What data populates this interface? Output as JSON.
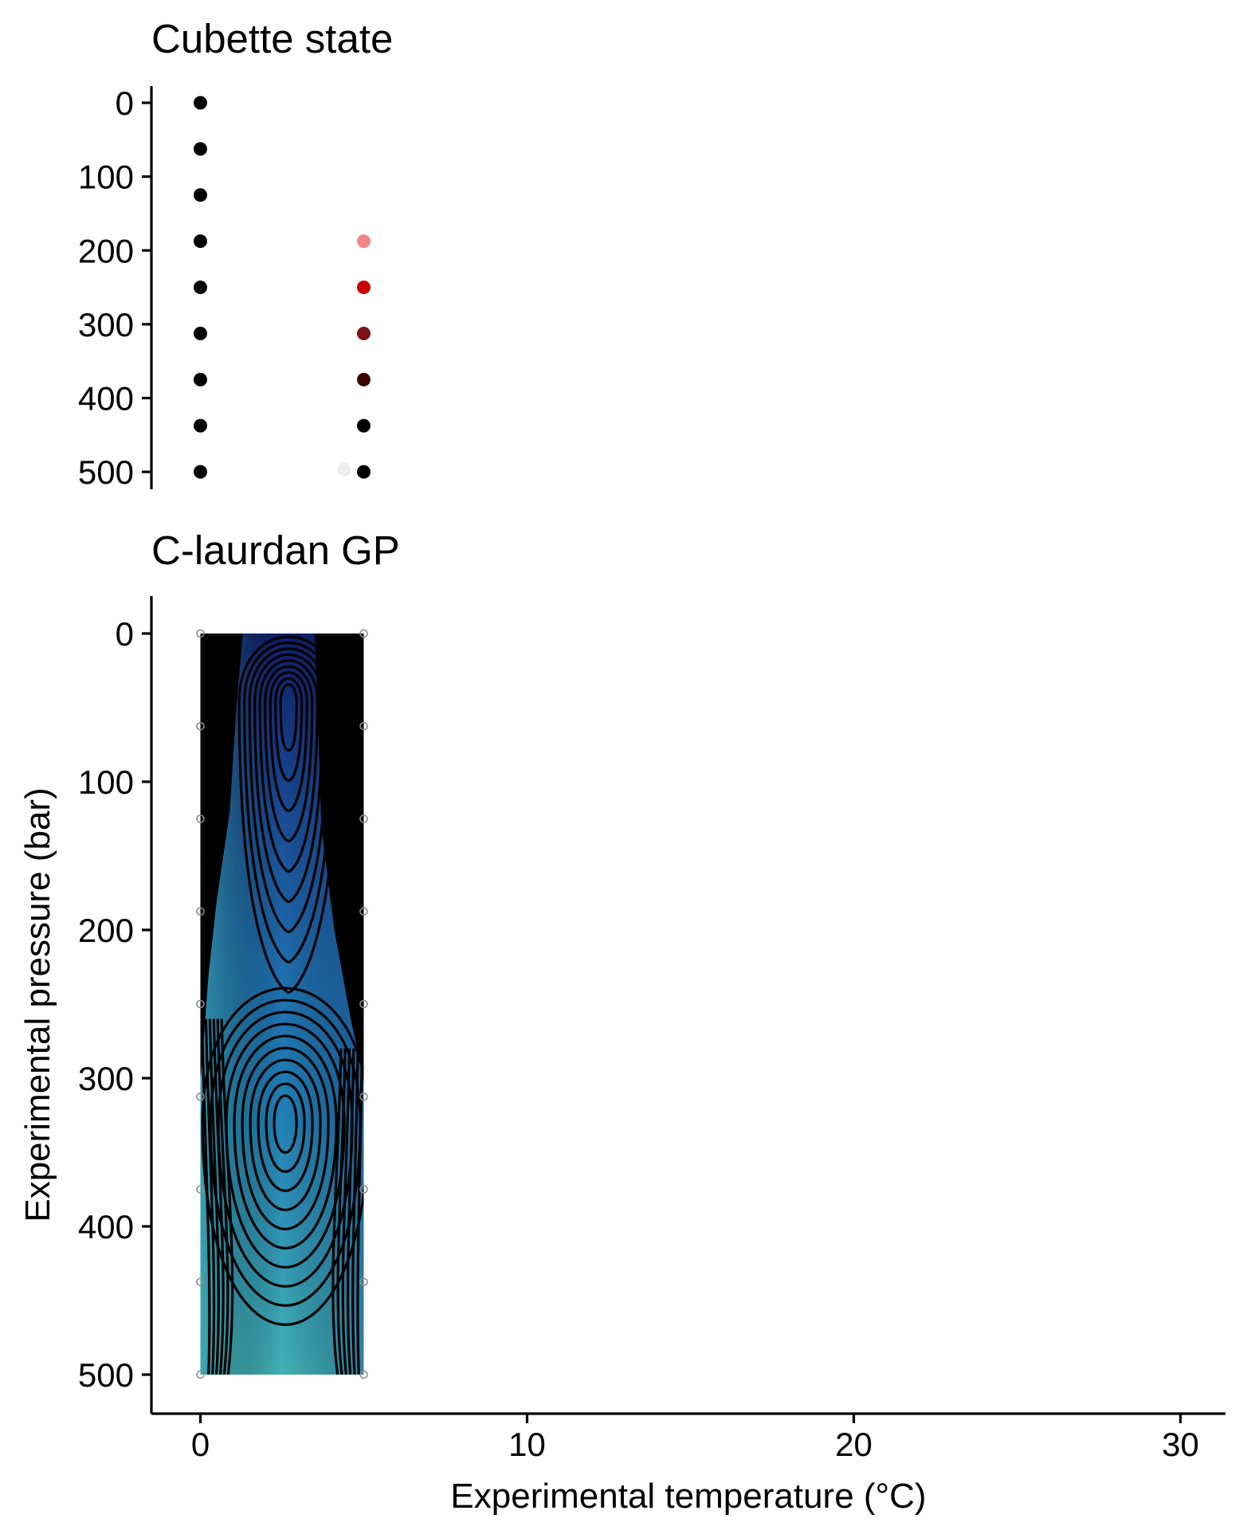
{
  "chart_data": [
    {
      "type": "scatter",
      "title": "Cubette state",
      "xlabel": "",
      "ylabel": "",
      "x_axis_shown": false,
      "xlim": [
        -1.5,
        31.5
      ],
      "ylim": [
        -20,
        520
      ],
      "y_reversed": true,
      "y_ticks": [
        0,
        100,
        200,
        300,
        400,
        500
      ],
      "y_tick_labels": [
        "0",
        "100",
        "200",
        "300",
        "400",
        "500"
      ],
      "grid": false,
      "legend": "none",
      "points": [
        {
          "x": 0,
          "y": 0,
          "color": "#000000"
        },
        {
          "x": 0,
          "y": 62.5,
          "color": "#000000"
        },
        {
          "x": 0,
          "y": 125,
          "color": "#000000"
        },
        {
          "x": 0,
          "y": 187.5,
          "color": "#000000"
        },
        {
          "x": 0,
          "y": 250,
          "color": "#000000"
        },
        {
          "x": 0,
          "y": 312.5,
          "color": "#000000"
        },
        {
          "x": 0,
          "y": 375,
          "color": "#000000"
        },
        {
          "x": 0,
          "y": 437.5,
          "color": "#000000"
        },
        {
          "x": 0,
          "y": 500,
          "color": "#000000"
        },
        {
          "x": 5,
          "y": 187.5,
          "color": "#f07070"
        },
        {
          "x": 5,
          "y": 250,
          "color": "#cc0000"
        },
        {
          "x": 5,
          "y": 312.5,
          "color": "#7a1515"
        },
        {
          "x": 5,
          "y": 375,
          "color": "#3c0505"
        },
        {
          "x": 5,
          "y": 437.5,
          "color": "#000000"
        },
        {
          "x": 5,
          "y": 500,
          "color": "#000000"
        },
        {
          "x": 4.4,
          "y": 497,
          "color": "#eeeeee"
        }
      ]
    },
    {
      "type": "heatmap",
      "subtype": "filled contour",
      "title": "C-laurdan GP",
      "xlabel": "Experimental temperature (°C)",
      "ylabel": "Experimental pressure (bar)",
      "xlim": [
        -1.5,
        31.5
      ],
      "ylim": [
        -25,
        525
      ],
      "y_reversed": true,
      "x_ticks": [
        0,
        10,
        20,
        30
      ],
      "x_tick_labels": [
        "0",
        "10",
        "20",
        "30"
      ],
      "y_ticks": [
        0,
        100,
        200,
        300,
        400,
        500
      ],
      "y_tick_labels": [
        "0",
        "100",
        "200",
        "300",
        "400",
        "500"
      ],
      "grid": false,
      "legend": "none",
      "colors": {
        "dark": "#0f1f6a",
        "mid": "#1f77b4",
        "light": "#45b3b8"
      },
      "data_x_range": [
        0,
        5
      ],
      "data_y_range": [
        0,
        500
      ],
      "minimum_locations": [
        {
          "x": 2.7,
          "y": 25
        },
        {
          "x": 2.6,
          "y": 330
        }
      ],
      "sample_points_x": [
        0,
        5
      ],
      "sample_points_y": [
        0,
        62.5,
        125,
        187.5,
        250,
        312.5,
        375,
        437.5,
        500
      ]
    }
  ]
}
